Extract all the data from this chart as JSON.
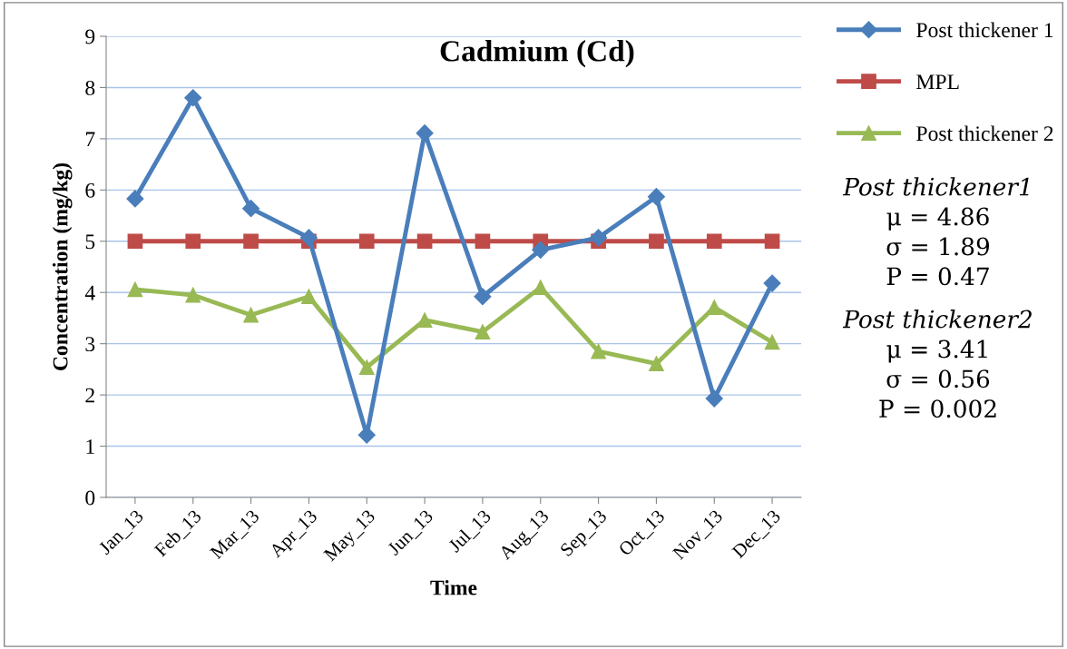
{
  "chart_data": {
    "type": "line",
    "title": "Cadmium (Cd)",
    "xlabel": "Time",
    "ylabel": "Concentration (mg/kg)",
    "categories": [
      "Jan_13",
      "Feb_13",
      "Mar_13",
      "Apr_13",
      "May_13",
      "Jun_13",
      "Jul_13",
      "Aug_13",
      "Sep_13",
      "Oct_13",
      "Nov_13",
      "Dec_13"
    ],
    "series": [
      {
        "name": "Post thickener 1",
        "color": "#4a7ebb",
        "marker": "diamond",
        "values": [
          5.83,
          7.8,
          5.64,
          5.07,
          1.22,
          7.11,
          3.92,
          4.83,
          5.07,
          5.87,
          1.93,
          4.18
        ]
      },
      {
        "name": "MPL",
        "color": "#be4b48",
        "marker": "square",
        "values": [
          5,
          5,
          5,
          5,
          5,
          5,
          5,
          5,
          5,
          5,
          5,
          5
        ]
      },
      {
        "name": "Post thickener 2",
        "color": "#98b954",
        "marker": "triangle",
        "values": [
          4.06,
          3.95,
          3.56,
          3.92,
          2.54,
          3.46,
          3.23,
          4.1,
          2.85,
          2.61,
          3.71,
          3.03
        ]
      }
    ],
    "ylim": [
      0,
      9
    ],
    "yticks": [
      0,
      1,
      2,
      3,
      4,
      5,
      6,
      7,
      8,
      9
    ],
    "grid": "y",
    "legend": "top right",
    "line_style": "solid",
    "annotations": [
      "Post thickener1",
      "μ = 4.86",
      "σ = 1.89",
      "P = 0.47",
      "Post thickener2",
      "μ = 3.41",
      "σ = 0.56",
      "P = 0.002"
    ]
  }
}
